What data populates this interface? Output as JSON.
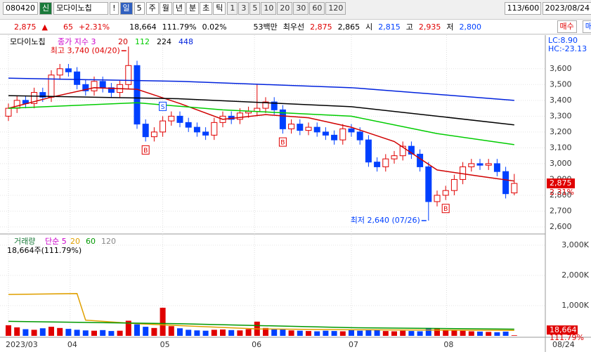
{
  "toolbar": {
    "code": "080420",
    "badge": "신",
    "name": "모다이노칩",
    "alert": "!",
    "period": "일",
    "period_n": "5",
    "periods": [
      "주",
      "월",
      "년",
      "분",
      "초",
      "틱"
    ],
    "intervals": [
      "1",
      "3",
      "5",
      "10",
      "20",
      "30",
      "60",
      "120"
    ],
    "count": "113/600",
    "date": "2023/08/24"
  },
  "quote": {
    "price": "2,875",
    "arrow": "▲",
    "change": "65",
    "rate": "+2.31%",
    "volume": "18,664",
    "volume_ratio": "111.79%",
    "turnover": "0.02%",
    "amount": "53백만",
    "best_label": "최우선",
    "ask": "2,875",
    "bid": "2,865",
    "open_label": "시",
    "open": "2,815",
    "high_label": "고",
    "high": "2,935",
    "low_label": "저",
    "low": "2,800",
    "buy": "매수",
    "sell": "매도"
  },
  "chart_data": [
    {
      "type": "candlestick",
      "title": "모다이노칩",
      "legend": "종가 지수 3",
      "up_color": "#e00000",
      "down_color": "#0040ff",
      "open": [
        3300,
        3350,
        3400,
        3380,
        3450,
        3420,
        3560,
        3600,
        3580,
        3500,
        3460,
        3520,
        3480,
        3450,
        3500,
        3620,
        3250,
        3170,
        3200,
        3270,
        3300,
        3260,
        3230,
        3200,
        3180,
        3260,
        3300,
        3280,
        3320,
        3330,
        3350,
        3390,
        3340,
        3220,
        3250,
        3210,
        3230,
        3200,
        3180,
        3150,
        3220,
        3200,
        3150,
        3010,
        2980,
        3030,
        3050,
        3110,
        3060,
        2980,
        2760,
        2800,
        2830,
        2900,
        2980,
        3000,
        2990,
        3000,
        2950,
        2815
      ],
      "high": [
        3380,
        3430,
        3430,
        3480,
        3480,
        3590,
        3630,
        3630,
        3610,
        3530,
        3550,
        3550,
        3510,
        3530,
        3740,
        3650,
        3280,
        3230,
        3300,
        3330,
        3330,
        3290,
        3260,
        3230,
        3290,
        3330,
        3330,
        3350,
        3360,
        3500,
        3420,
        3420,
        3370,
        3280,
        3280,
        3260,
        3260,
        3230,
        3210,
        3250,
        3250,
        3230,
        3180,
        3040,
        3060,
        3080,
        3140,
        3140,
        3090,
        3010,
        2830,
        2860,
        2930,
        3010,
        3030,
        3030,
        3030,
        3030,
        2980,
        2935
      ],
      "low": [
        3270,
        3320,
        3350,
        3350,
        3390,
        3390,
        3530,
        3550,
        3470,
        3430,
        3430,
        3450,
        3420,
        3420,
        3470,
        3220,
        3140,
        3140,
        3170,
        3240,
        3230,
        3200,
        3170,
        3150,
        3150,
        3230,
        3250,
        3250,
        3290,
        3300,
        3320,
        3310,
        3190,
        3190,
        3180,
        3180,
        3170,
        3150,
        3120,
        3120,
        3170,
        3120,
        2980,
        2950,
        2950,
        3000,
        3020,
        3030,
        2950,
        2640,
        2730,
        2770,
        2800,
        2870,
        2950,
        2960,
        2960,
        2920,
        2780,
        2800
      ],
      "close": [
        3350,
        3400,
        3380,
        3450,
        3420,
        3560,
        3600,
        3580,
        3500,
        3460,
        3520,
        3480,
        3450,
        3500,
        3620,
        3250,
        3170,
        3200,
        3270,
        3300,
        3260,
        3230,
        3200,
        3180,
        3260,
        3300,
        3280,
        3320,
        3330,
        3350,
        3390,
        3340,
        3220,
        3250,
        3210,
        3230,
        3200,
        3180,
        3150,
        3220,
        3200,
        3150,
        3010,
        2980,
        3030,
        3050,
        3110,
        3060,
        2980,
        2760,
        2800,
        2830,
        2900,
        2980,
        3000,
        2990,
        3000,
        2950,
        2810,
        2875
      ],
      "series": [
        {
          "name": "20",
          "color": "#d00000",
          "x": [
            0,
            5,
            10,
            15,
            20,
            25,
            30,
            35,
            40,
            45,
            50,
            55,
            59
          ],
          "values": [
            3350,
            3420,
            3480,
            3470,
            3380,
            3280,
            3310,
            3290,
            3230,
            3140,
            2960,
            2920,
            2890
          ]
        },
        {
          "name": "112",
          "color": "#00cc00",
          "x": [
            0,
            15,
            25,
            40,
            50,
            59
          ],
          "values": [
            3350,
            3385,
            3340,
            3300,
            3190,
            3120
          ]
        },
        {
          "name": "224",
          "color": "#000000",
          "x": [
            0,
            20,
            40,
            50,
            59
          ],
          "values": [
            3430,
            3410,
            3360,
            3300,
            3245
          ]
        },
        {
          "name": "448",
          "color": "#0022dd",
          "x": [
            0,
            20,
            40,
            59
          ],
          "values": [
            3540,
            3520,
            3480,
            3400
          ]
        }
      ],
      "ylim": [
        2560,
        3790
      ],
      "yticks": [
        {
          "value": 2600,
          "label": "2,600"
        },
        {
          "value": 2700,
          "label": "2,700"
        },
        {
          "value": 2800,
          "label": "2,800"
        },
        {
          "value": 2900,
          "label": "2,900"
        },
        {
          "value": 3000,
          "label": "3,000"
        },
        {
          "value": 3100,
          "label": "3,100"
        },
        {
          "value": 3200,
          "label": "3,200"
        },
        {
          "value": 3300,
          "label": "3,300"
        },
        {
          "value": 3400,
          "label": "3,400"
        },
        {
          "value": 3500,
          "label": "3,500"
        },
        {
          "value": 3600,
          "label": "3,600"
        }
      ],
      "annotations": [
        {
          "text": "최고 3,740 (04/20)",
          "index": 14,
          "kind": "high"
        },
        {
          "text": "최저 2,640 (07/26)",
          "index": 49,
          "kind": "low"
        }
      ],
      "markers": [
        {
          "label": "B",
          "index": 16
        },
        {
          "label": "S",
          "index": 18
        },
        {
          "label": "B",
          "index": 32
        },
        {
          "label": "B",
          "index": 51
        }
      ],
      "lc": "LC:8.90",
      "hc": "HC:-23.13",
      "current_label": "2,875",
      "current_change": "2.31%"
    },
    {
      "type": "bar",
      "title": "거래량",
      "legend_note": "18,664주(111.79%)",
      "values": [
        350,
        280,
        220,
        200,
        250,
        300,
        260,
        230,
        200,
        180,
        170,
        190,
        160,
        170,
        500,
        380,
        300,
        260,
        930,
        320,
        250,
        200,
        180,
        170,
        200,
        210,
        190,
        180,
        220,
        470,
        260,
        230,
        210,
        180,
        170,
        160,
        150,
        170,
        160,
        150,
        190,
        170,
        210,
        200,
        160,
        150,
        170,
        160,
        150,
        260,
        230,
        200,
        180,
        170,
        150,
        140,
        130,
        120,
        140,
        18.664
      ],
      "series": [
        {
          "name": "단순 5",
          "color": "#cc00cc"
        },
        {
          "name": "20",
          "color": "#e0a000",
          "x": [
            0,
            8,
            9,
            15,
            29,
            40,
            59
          ],
          "values": [
            1370,
            1400,
            520,
            400,
            230,
            200,
            180
          ]
        },
        {
          "name": "60",
          "color": "#009900",
          "x": [
            0,
            20,
            40,
            59
          ],
          "values": [
            480,
            400,
            270,
            220
          ]
        },
        {
          "name": "120",
          "color": "#888888"
        }
      ],
      "ylim": [
        0,
        3280
      ],
      "yticks": [
        {
          "value": 1000,
          "label": "1,000K"
        },
        {
          "value": 2000,
          "label": "2,000K"
        },
        {
          "value": 3000,
          "label": "3,000K"
        }
      ],
      "xticks": [
        {
          "value": 0,
          "label": "2023/03"
        },
        {
          "value": 7.2,
          "label": "04"
        },
        {
          "value": 18,
          "label": "05"
        },
        {
          "value": 28.7,
          "label": "06"
        },
        {
          "value": 40,
          "label": "07"
        },
        {
          "value": 51.1,
          "label": "08"
        }
      ],
      "last_date": "08/24",
      "current_label": "18,664",
      "current_ratio": "111.79%"
    }
  ]
}
